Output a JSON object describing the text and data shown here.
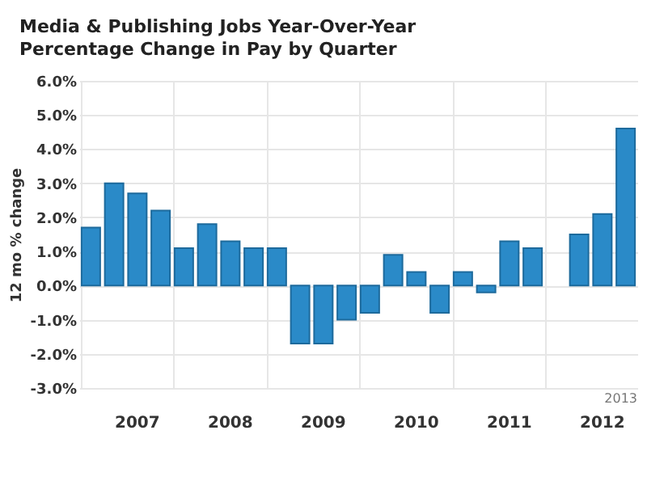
{
  "chart_data": {
    "type": "bar",
    "title": "Media & Publishing Jobs Year-Over-Year Percentage Change in Pay by Quarter",
    "ylabel": "12 mo % change",
    "categories": [
      null,
      null,
      "2007",
      null,
      null,
      null,
      "2008",
      null,
      null,
      null,
      "2009",
      null,
      null,
      null,
      "2010",
      null,
      null,
      null,
      "2011",
      null,
      null,
      null,
      "2012",
      null
    ],
    "values": [
      1.7,
      3.0,
      2.7,
      2.2,
      1.1,
      1.8,
      1.3,
      1.1,
      1.1,
      -1.7,
      -1.7,
      -1.0,
      -0.8,
      0.9,
      0.4,
      -0.8,
      0.4,
      -0.2,
      1.3,
      1.1,
      null,
      1.5,
      2.1,
      4.6
    ],
    "color": "#2a8ac8",
    "ylim": [
      -3,
      6
    ],
    "yticks": [
      {
        "value": -3,
        "label": "-3.0%"
      },
      {
        "value": -2,
        "label": "-2.0%"
      },
      {
        "value": -1,
        "label": "-1.0%"
      },
      {
        "value": 0,
        "label": "0.0%"
      },
      {
        "value": 1,
        "label": "1.0%"
      },
      {
        "value": 2,
        "label": "2.0%"
      },
      {
        "value": 3,
        "label": "3.0%"
      },
      {
        "value": 4,
        "label": "4.0%"
      },
      {
        "value": 5,
        "label": "5.0%"
      },
      {
        "value": 6,
        "label": "6.0%"
      }
    ],
    "grid": true,
    "annotations": [
      "2013"
    ]
  }
}
